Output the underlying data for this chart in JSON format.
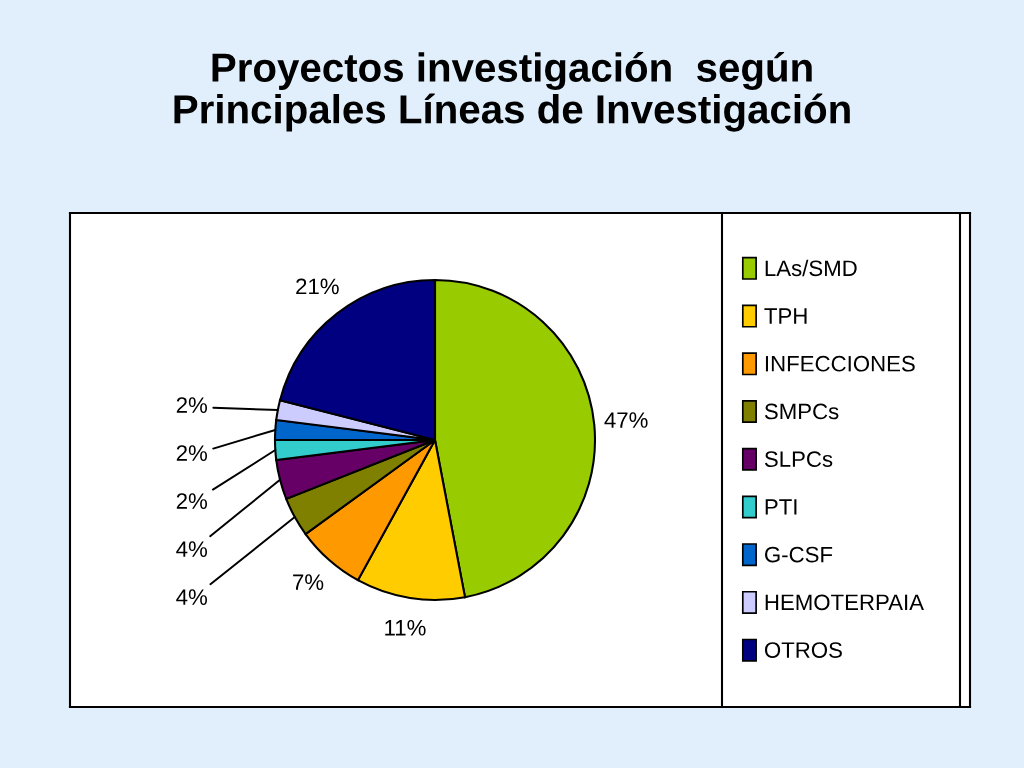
{
  "chart_data": {
    "type": "pie",
    "title": "Proyectos investigación  según\nPrincipales Líneas de Investigación",
    "categories": [
      "LAs/SMD",
      "TPH",
      "INFECCIONES",
      "SMPCs",
      "SLPCs",
      "PTI",
      "G-CSF",
      "HEMOTERPAIA",
      "OTROS"
    ],
    "values": [
      47,
      11,
      7,
      4,
      4,
      2,
      2,
      2,
      21
    ],
    "colors": [
      "#99cc00",
      "#ffcc00",
      "#ff9900",
      "#808000",
      "#660066",
      "#33cccc",
      "#0066cc",
      "#ccccff",
      "#000080"
    ],
    "value_labels": [
      "47%",
      "11%",
      "7%",
      "4%",
      "4%",
      "2%",
      "2%",
      "2%",
      "21%"
    ],
    "legend": "right"
  }
}
